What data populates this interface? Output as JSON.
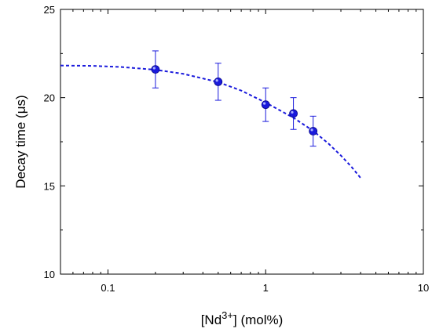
{
  "chart_data": {
    "type": "scatter",
    "title": "",
    "xscale": "log",
    "yscale": "linear",
    "xlim": [
      0.05,
      10
    ],
    "ylim": [
      10,
      25
    ],
    "x_ticks": [
      {
        "value": 0.1,
        "label": "0.1"
      },
      {
        "value": 1,
        "label": "1"
      },
      {
        "value": 10,
        "label": "10"
      }
    ],
    "y_ticks": [
      {
        "value": 10,
        "label": "10"
      },
      {
        "value": 15,
        "label": "15"
      },
      {
        "value": 20,
        "label": "20"
      },
      {
        "value": 25,
        "label": "25"
      }
    ],
    "xlabel": {
      "prefix": "[Nd",
      "superscript": "3+",
      "suffix": "] (mol%)"
    },
    "ylabel": "Decay time (μs)",
    "grid": false,
    "legend": "none",
    "colors": {
      "points": "#1a1adc",
      "fit": "#1a1adc"
    },
    "series": [
      {
        "marker": "circle",
        "points": [
          {
            "x": 0.2,
            "y": 21.6,
            "err": 1.05
          },
          {
            "x": 0.5,
            "y": 20.9,
            "err": 1.05
          },
          {
            "x": 1.0,
            "y": 19.6,
            "err": 0.95
          },
          {
            "x": 1.5,
            "y": 19.1,
            "err": 0.9
          },
          {
            "x": 2.0,
            "y": 18.1,
            "err": 0.85
          }
        ]
      }
    ],
    "fit_curve": {
      "style": "dashed",
      "points": [
        {
          "x": 0.05,
          "y": 21.82
        },
        {
          "x": 0.08,
          "y": 21.8
        },
        {
          "x": 0.12,
          "y": 21.74
        },
        {
          "x": 0.2,
          "y": 21.58
        },
        {
          "x": 0.3,
          "y": 21.35
        },
        {
          "x": 0.5,
          "y": 20.88
        },
        {
          "x": 0.7,
          "y": 20.4
        },
        {
          "x": 1.0,
          "y": 19.72
        },
        {
          "x": 1.5,
          "y": 18.86
        },
        {
          "x": 2.0,
          "y": 18.12
        },
        {
          "x": 2.5,
          "y": 17.4
        },
        {
          "x": 3.0,
          "y": 16.72
        },
        {
          "x": 3.5,
          "y": 16.08
        },
        {
          "x": 4.0,
          "y": 15.45
        }
      ]
    }
  }
}
